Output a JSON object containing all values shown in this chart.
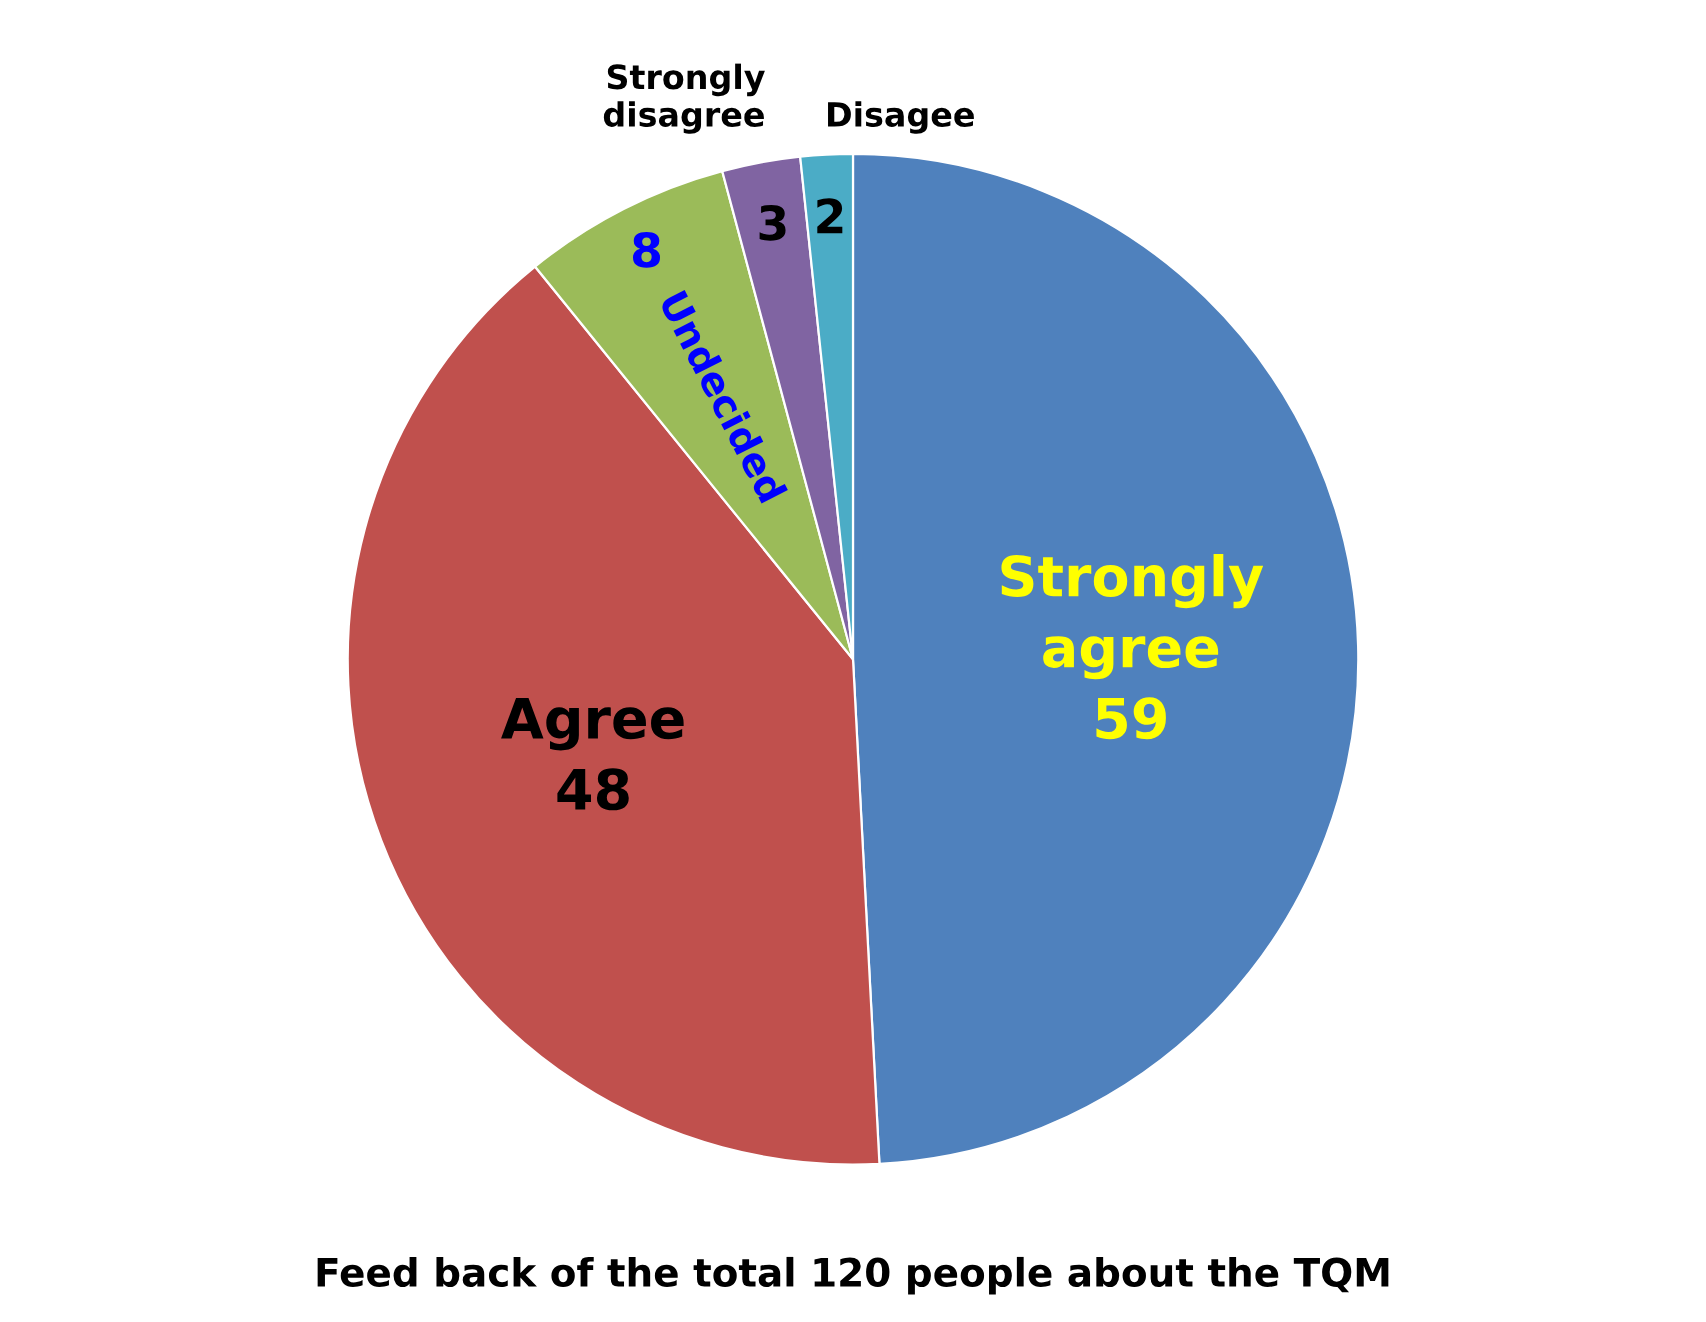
{
  "chart_data": {
    "type": "pie",
    "title": "Feed back of the total 120 people about the TQM",
    "categories": [
      "Strongly agree",
      "Agree",
      "Undecided",
      "Strongly disagree",
      "Disagee"
    ],
    "values": [
      59,
      48,
      8,
      3,
      2
    ],
    "colors": [
      "#4f81bd",
      "#c0504d",
      "#9bbb59",
      "#8064a2",
      "#4bacc6"
    ],
    "data_labels": true
  }
}
